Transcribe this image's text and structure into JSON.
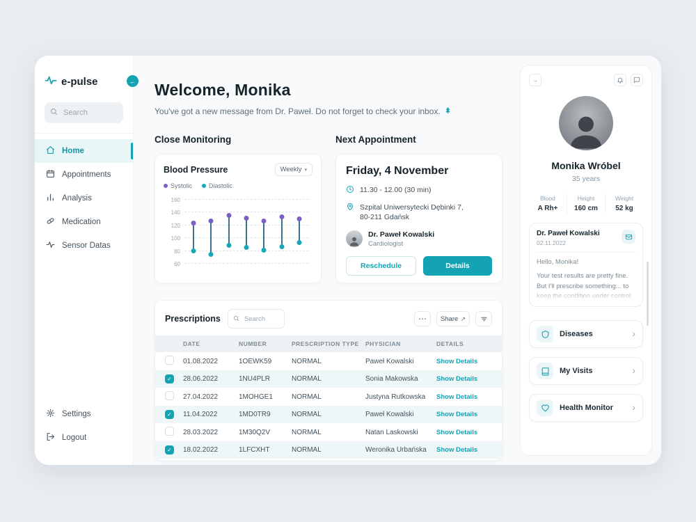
{
  "colors": {
    "accent": "#14a3b3",
    "systolic": "#7b5fc5",
    "diastolic": "#14a8b8"
  },
  "app": {
    "logo": "e-pulse"
  },
  "sidebar": {
    "search_placeholder": "Search",
    "items": [
      {
        "label": "Home",
        "icon": "home"
      },
      {
        "label": "Appointments",
        "icon": "calendar"
      },
      {
        "label": "Analysis",
        "icon": "bar-chart"
      },
      {
        "label": "Medication",
        "icon": "pill"
      },
      {
        "label": "Sensor Datas",
        "icon": "activity"
      }
    ],
    "footer_items": [
      {
        "label": "Settings",
        "icon": "gear"
      },
      {
        "label": "Logout",
        "icon": "logout"
      }
    ]
  },
  "header": {
    "title": "Welcome, Monika",
    "subtitle": "You've got a new message from Dr. Paweł. Do not forget to check your inbox.",
    "subtitle_icon": "tree-icon"
  },
  "close_monitoring": {
    "section_title": "Close Monitoring",
    "card_title": "Blood Pressure",
    "period": "Weekly"
  },
  "chart_data": {
    "type": "dumbbell",
    "title": "Blood Pressure",
    "period": "Weekly",
    "ylim": [
      60,
      160
    ],
    "yticks": [
      160,
      140,
      120,
      100,
      80,
      60
    ],
    "grid": "dashed-horizontal",
    "stem_color": "#3d7292",
    "series": [
      {
        "name": "Systolic",
        "color": "#7b5fc5",
        "values": [
          122,
          126,
          134,
          130,
          126,
          132,
          129
        ]
      },
      {
        "name": "Diastolic",
        "color": "#14a8b8",
        "values": [
          79,
          74,
          88,
          84,
          80,
          86,
          92
        ]
      }
    ]
  },
  "appointment": {
    "section_title": "Next Appointment",
    "date": "Friday, 4 November",
    "time": "11.30 - 12.00 (30 min)",
    "location_line1": "Szpital Uniwersytecki Dębinki 7,",
    "location_line2": "80-211 Gdańsk",
    "doctor": "Dr. Paweł Kowalski",
    "doctor_role": "Cardiologist",
    "reschedule_label": "Reschedule",
    "details_label": "Details"
  },
  "prescriptions": {
    "title": "Prescriptions",
    "search_placeholder": "Search",
    "share_label": "Share",
    "details_label": "Show Details",
    "columns": [
      "DATE",
      "NUMBER",
      "PRESCRIPTION TYPE",
      "PHYSICIAN",
      "DETAILS"
    ],
    "rows": [
      {
        "date": "01.08.2022",
        "number": "1OEWK59",
        "type": "NORMAL",
        "physician": "Paweł Kowalski",
        "checked": false
      },
      {
        "date": "28.06.2022",
        "number": "1NU4PLR",
        "type": "NORMAL",
        "physician": "Sonia Makowska",
        "checked": true
      },
      {
        "date": "27.04.2022",
        "number": "1MOHGE1",
        "type": "NORMAL",
        "physician": "Justyna Rutkowska",
        "checked": false
      },
      {
        "date": "11.04.2022",
        "number": "1MD0TR9",
        "type": "NORMAL",
        "physician": "Paweł Kowalski",
        "checked": true
      },
      {
        "date": "28.03.2022",
        "number": "1M30Q2V",
        "type": "NORMAL",
        "physician": "Natan Laskowski",
        "checked": false
      },
      {
        "date": "18.02.2022",
        "number": "1LFCXHT",
        "type": "NORMAL",
        "physician": "Weronika Urbańska",
        "checked": true
      }
    ]
  },
  "profile": {
    "name": "Monika Wróbel",
    "age": "35 years",
    "stats": [
      {
        "label": "Blood",
        "value": "A Rh+"
      },
      {
        "label": "Height",
        "value": "160 cm"
      },
      {
        "label": "Weight",
        "value": "52 kg"
      }
    ],
    "message": {
      "doctor": "Dr. Paweł Kowalski",
      "date": "02.11.2022",
      "line1": "Hello, Monika!",
      "line2": "Your test results are pretty fine. But I'll prescribe something... to keep the condition under control."
    },
    "links": [
      {
        "label": "Diseases",
        "icon": "shield-icon"
      },
      {
        "label": "My Visits",
        "icon": "book-icon"
      },
      {
        "label": "Health Monitor",
        "icon": "heart-icon"
      }
    ]
  }
}
